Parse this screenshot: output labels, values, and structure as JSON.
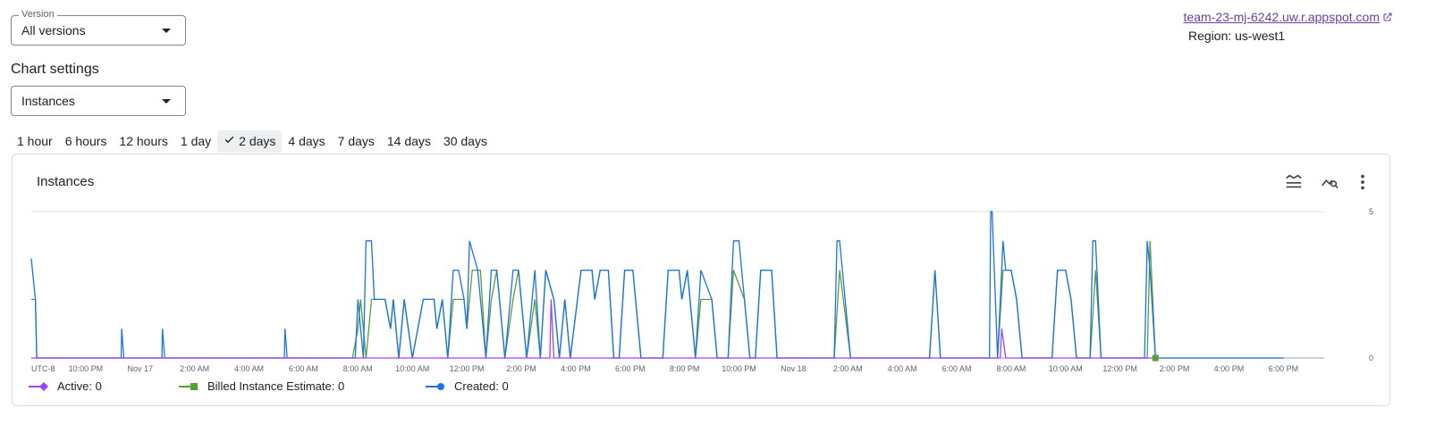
{
  "version": {
    "label": "Version",
    "value": "All versions"
  },
  "chart_settings": {
    "title": "Chart settings",
    "metric": "Instances"
  },
  "app": {
    "link_text": "team-23-mj-6242.uw.r.appspot.com",
    "region": "Region: us-west1"
  },
  "time_ranges": [
    {
      "label": "1 hour",
      "selected": false
    },
    {
      "label": "6 hours",
      "selected": false
    },
    {
      "label": "12 hours",
      "selected": false
    },
    {
      "label": "1 day",
      "selected": false
    },
    {
      "label": "2 days",
      "selected": true
    },
    {
      "label": "4 days",
      "selected": false
    },
    {
      "label": "7 days",
      "selected": false
    },
    {
      "label": "14 days",
      "selected": false
    },
    {
      "label": "30 days",
      "selected": false
    }
  ],
  "icons": {
    "legend_toggle": "legend-icon",
    "explore": "explore-chart-icon",
    "more": "more-vert-icon",
    "external": "external-link-icon",
    "check": "check-icon"
  },
  "colors": {
    "active": "#a142f4",
    "billed": "#5a9e35",
    "created": "#1a73e8",
    "link": "#6c3fa0"
  },
  "chart_data": {
    "type": "line",
    "title": "Instances",
    "x_ticks": [
      "UTC-8",
      "10:00 PM",
      "Nov 17",
      "2:00 AM",
      "4:00 AM",
      "6:00 AM",
      "8:00 AM",
      "10:00 AM",
      "12:00 PM",
      "2:00 PM",
      "4:00 PM",
      "6:00 PM",
      "8:00 PM",
      "10:00 PM",
      "Nov 18",
      "2:00 AM",
      "4:00 AM",
      "6:00 AM",
      "8:00 AM",
      "10:00 AM",
      "12:00 PM",
      "2:00 PM",
      "4:00 PM",
      "6:00 PM"
    ],
    "x_range_hours": [
      0,
      47.5
    ],
    "ylim": [
      0,
      5
    ],
    "y_ticks": [
      "0",
      "5"
    ],
    "grid": "horizontal",
    "legend_placement": "bottom",
    "series": [
      {
        "name": "Active",
        "display": "Active: 0",
        "color": "#a142f4",
        "marker": "diamond",
        "points": [
          [
            0,
            0
          ],
          [
            19.05,
            0
          ],
          [
            19.1,
            2
          ],
          [
            19.2,
            0
          ],
          [
            35.6,
            0
          ],
          [
            35.65,
            1
          ],
          [
            35.8,
            0
          ],
          [
            41.2,
            0
          ]
        ]
      },
      {
        "name": "Billed Instance Estimate",
        "display": "Billed Instance Estimate: 0",
        "color": "#5a9e35",
        "marker": "square",
        "points": [
          [
            0,
            2
          ],
          [
            0.15,
            2
          ],
          [
            0.2,
            0
          ],
          [
            11.8,
            0
          ],
          [
            12.0,
            1
          ],
          [
            12.1,
            2
          ],
          [
            12.3,
            0
          ],
          [
            12.5,
            2
          ],
          [
            13.0,
            2
          ],
          [
            13.2,
            1
          ],
          [
            13.3,
            2
          ],
          [
            13.5,
            0
          ],
          [
            13.7,
            2
          ],
          [
            14.0,
            0
          ],
          [
            14.4,
            2
          ],
          [
            14.8,
            2
          ],
          [
            14.9,
            1
          ],
          [
            15.1,
            2
          ],
          [
            15.3,
            0
          ],
          [
            15.5,
            2
          ],
          [
            15.9,
            2
          ],
          [
            16.0,
            1
          ],
          [
            16.2,
            3
          ],
          [
            16.5,
            3
          ],
          [
            16.7,
            0
          ],
          [
            16.9,
            2
          ],
          [
            17.1,
            3
          ],
          [
            17.4,
            0
          ],
          [
            17.7,
            2
          ],
          [
            17.9,
            3
          ],
          [
            18.2,
            0
          ],
          [
            18.5,
            2
          ],
          [
            18.7,
            0
          ],
          [
            18.9,
            3
          ],
          [
            19.2,
            2
          ],
          [
            19.4,
            0
          ],
          [
            19.6,
            2
          ],
          [
            19.8,
            0
          ],
          [
            20.2,
            3
          ],
          [
            20.6,
            3
          ],
          [
            20.7,
            2
          ],
          [
            20.9,
            3
          ],
          [
            21.2,
            3
          ],
          [
            21.4,
            0
          ],
          [
            21.6,
            0
          ],
          [
            21.8,
            3
          ],
          [
            22.1,
            3
          ],
          [
            22.4,
            0
          ],
          [
            23.2,
            0
          ],
          [
            23.4,
            3
          ],
          [
            23.8,
            3
          ],
          [
            23.9,
            2
          ],
          [
            24.1,
            3
          ],
          [
            24.4,
            0
          ],
          [
            24.6,
            2
          ],
          [
            25.0,
            2
          ],
          [
            25.2,
            0
          ],
          [
            25.6,
            0
          ],
          [
            25.8,
            3
          ],
          [
            26.2,
            2
          ],
          [
            26.4,
            0
          ],
          [
            26.6,
            0
          ],
          [
            26.8,
            3
          ],
          [
            27.2,
            3
          ],
          [
            27.4,
            0
          ],
          [
            29.5,
            0
          ],
          [
            29.7,
            3
          ],
          [
            30.1,
            0
          ],
          [
            33.0,
            0
          ],
          [
            33.2,
            3
          ],
          [
            33.4,
            0
          ],
          [
            35.5,
            0
          ],
          [
            35.7,
            3
          ],
          [
            36.0,
            3
          ],
          [
            36.2,
            2
          ],
          [
            36.4,
            0
          ],
          [
            37.5,
            0
          ],
          [
            37.7,
            3
          ],
          [
            38.0,
            3
          ],
          [
            38.2,
            2
          ],
          [
            38.4,
            0
          ],
          [
            38.9,
            0
          ],
          [
            39.1,
            3
          ],
          [
            39.3,
            0
          ],
          [
            41.0,
            0
          ],
          [
            41.1,
            4
          ],
          [
            41.3,
            0
          ],
          [
            46.0,
            0
          ]
        ]
      },
      {
        "name": "Created",
        "display": "Created: 0",
        "color": "#1a73e8",
        "marker": "circle",
        "points": [
          [
            0,
            3.4
          ],
          [
            0.15,
            2
          ],
          [
            0.2,
            0
          ],
          [
            3.3,
            0
          ],
          [
            3.32,
            1
          ],
          [
            3.4,
            0
          ],
          [
            4.8,
            0
          ],
          [
            4.82,
            1
          ],
          [
            4.9,
            0
          ],
          [
            9.3,
            0
          ],
          [
            9.32,
            1
          ],
          [
            9.4,
            0
          ],
          [
            11.9,
            0
          ],
          [
            12.0,
            2
          ],
          [
            12.2,
            0
          ],
          [
            12.3,
            4
          ],
          [
            12.5,
            4
          ],
          [
            12.6,
            2
          ],
          [
            13.0,
            2
          ],
          [
            13.2,
            1
          ],
          [
            13.3,
            2
          ],
          [
            13.5,
            0
          ],
          [
            13.7,
            2
          ],
          [
            14.0,
            0
          ],
          [
            14.4,
            2
          ],
          [
            14.8,
            2
          ],
          [
            14.9,
            1
          ],
          [
            15.1,
            2
          ],
          [
            15.3,
            0
          ],
          [
            15.5,
            3
          ],
          [
            15.7,
            3
          ],
          [
            15.9,
            2
          ],
          [
            16.0,
            1
          ],
          [
            16.1,
            4
          ],
          [
            16.4,
            3
          ],
          [
            16.7,
            0
          ],
          [
            16.9,
            3
          ],
          [
            17.1,
            3
          ],
          [
            17.4,
            0
          ],
          [
            17.7,
            3
          ],
          [
            17.9,
            3
          ],
          [
            18.2,
            0
          ],
          [
            18.5,
            3
          ],
          [
            18.7,
            0
          ],
          [
            18.9,
            3
          ],
          [
            19.2,
            2
          ],
          [
            19.4,
            0
          ],
          [
            19.6,
            2
          ],
          [
            19.8,
            0
          ],
          [
            20.2,
            3
          ],
          [
            20.6,
            3
          ],
          [
            20.7,
            2
          ],
          [
            20.9,
            3
          ],
          [
            21.2,
            3
          ],
          [
            21.4,
            0
          ],
          [
            21.6,
            0
          ],
          [
            21.8,
            3
          ],
          [
            22.1,
            3
          ],
          [
            22.4,
            0
          ],
          [
            23.2,
            0
          ],
          [
            23.4,
            3
          ],
          [
            23.8,
            3
          ],
          [
            23.9,
            2
          ],
          [
            24.1,
            3
          ],
          [
            24.4,
            0
          ],
          [
            24.6,
            3
          ],
          [
            25.0,
            2
          ],
          [
            25.2,
            0
          ],
          [
            25.6,
            0
          ],
          [
            25.8,
            4
          ],
          [
            26.0,
            4
          ],
          [
            26.2,
            2
          ],
          [
            26.4,
            0
          ],
          [
            26.6,
            0
          ],
          [
            26.8,
            3
          ],
          [
            27.2,
            3
          ],
          [
            27.4,
            0
          ],
          [
            29.5,
            0
          ],
          [
            29.6,
            4
          ],
          [
            29.7,
            4
          ],
          [
            30.1,
            0
          ],
          [
            33.0,
            0
          ],
          [
            33.2,
            3
          ],
          [
            33.4,
            0
          ],
          [
            35.2,
            0
          ],
          [
            35.25,
            5
          ],
          [
            35.3,
            5
          ],
          [
            35.5,
            0
          ],
          [
            35.7,
            4
          ],
          [
            35.8,
            3
          ],
          [
            36.0,
            3
          ],
          [
            36.2,
            2
          ],
          [
            36.4,
            0
          ],
          [
            37.5,
            0
          ],
          [
            37.7,
            3
          ],
          [
            38.0,
            3
          ],
          [
            38.2,
            2
          ],
          [
            38.4,
            0
          ],
          [
            38.9,
            0
          ],
          [
            39.0,
            4
          ],
          [
            39.1,
            4
          ],
          [
            39.3,
            0
          ],
          [
            40.9,
            0
          ],
          [
            41.0,
            4
          ],
          [
            41.1,
            3
          ],
          [
            41.3,
            0
          ],
          [
            46.0,
            0
          ]
        ]
      }
    ]
  }
}
